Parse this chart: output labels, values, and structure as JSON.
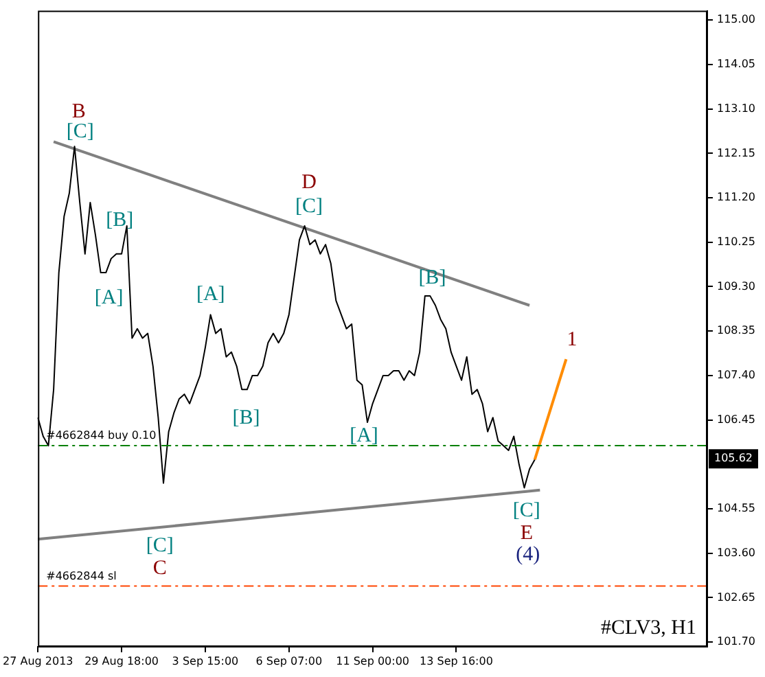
{
  "chart_data": {
    "type": "line",
    "grid": false,
    "legend": false,
    "marker": "none",
    "categories": [
      "27 Aug 2013",
      null,
      null,
      null,
      null,
      null,
      null,
      null,
      null,
      null,
      null,
      null,
      null,
      null,
      null,
      null,
      "29 Aug 18:00",
      null,
      null,
      null,
      null,
      null,
      null,
      null,
      null,
      null,
      null,
      null,
      null,
      null,
      null,
      null,
      "3 Sep 15:00",
      null,
      null,
      null,
      null,
      null,
      null,
      null,
      null,
      null,
      null,
      null,
      null,
      null,
      null,
      null,
      "6 Sep 07:00",
      null,
      null,
      null,
      null,
      null,
      null,
      null,
      null,
      null,
      null,
      null,
      null,
      null,
      null,
      null,
      "11 Sep 00:00",
      null,
      null,
      null,
      null,
      null,
      null,
      null,
      null,
      null,
      null,
      null,
      null,
      null,
      null,
      null,
      "13 Sep 16:00",
      null,
      null,
      null,
      null,
      null,
      null,
      null,
      null,
      null,
      null,
      null,
      null,
      null,
      null,
      null,
      null,
      null,
      null,
      null,
      null,
      null,
      null,
      null,
      null,
      null,
      null,
      null,
      null,
      null,
      null,
      null,
      null,
      null,
      null,
      null,
      null,
      null,
      null,
      null,
      null,
      null,
      null,
      null,
      null,
      null,
      null,
      null,
      null
    ],
    "ylim": [
      101.6,
      115.2
    ],
    "yticks": [
      {
        "value": 101.7,
        "label": "101.70"
      },
      102.65,
      {
        "value": 103.6,
        "label": "103.60"
      },
      104.55,
      106.45,
      {
        "value": 107.4,
        "label": "107.40"
      },
      108.35,
      {
        "value": 109.3,
        "label": "109.30"
      },
      110.25,
      {
        "value": 111.2,
        "label": "111.20"
      },
      112.15,
      {
        "value": 113.1,
        "label": "113.10"
      },
      114.05,
      {
        "value": 115.0,
        "label": "115.00"
      }
    ],
    "series": [
      {
        "type": "line",
        "color": "#000000",
        "values": [
          106.5,
          106.1,
          105.9,
          107.1,
          109.6,
          110.8,
          111.3,
          112.3,
          111.1,
          110.0,
          111.1,
          110.4,
          109.6,
          109.6,
          109.9,
          110.0,
          110.0,
          110.6,
          108.2,
          108.4,
          108.2,
          108.3,
          107.6,
          106.5,
          105.1,
          106.2,
          106.6,
          106.9,
          107.0,
          106.8,
          107.1,
          107.4,
          108.0,
          108.7,
          108.3,
          108.4,
          107.8,
          107.9,
          107.6,
          107.1,
          107.1,
          107.4,
          107.4,
          107.6,
          108.1,
          108.3,
          108.1,
          108.3,
          108.7,
          109.5,
          110.3,
          110.6,
          110.2,
          110.3,
          110.0,
          110.2,
          109.8,
          109.0,
          108.7,
          108.4,
          108.5,
          107.3,
          107.2,
          106.4,
          106.8,
          107.1,
          107.4,
          107.4,
          107.5,
          107.5,
          107.3,
          107.5,
          107.4,
          107.9,
          109.1,
          109.1,
          108.9,
          108.6,
          108.4,
          107.9,
          107.6,
          107.3,
          107.8,
          107.0,
          107.1,
          106.8,
          106.2,
          106.5,
          106.0,
          105.9,
          105.8,
          106.1,
          105.5,
          105.0,
          105.4,
          105.6,
          null,
          null,
          null,
          null,
          null,
          null,
          null,
          null,
          null,
          null,
          null,
          null,
          null,
          null,
          null,
          null,
          null,
          null,
          null,
          null,
          null,
          null,
          null,
          null,
          null,
          null,
          null,
          null,
          null,
          null,
          null,
          null,
          null
        ]
      },
      {
        "type": "line",
        "color": "#808080",
        "values": [
          null,
          null,
          null,
          112.4,
          null,
          null,
          null,
          null,
          null,
          null,
          null,
          null,
          null,
          null,
          null,
          null,
          null,
          null,
          null,
          null,
          null,
          null,
          null,
          null,
          null,
          null,
          null,
          null,
          null,
          null,
          null,
          null,
          null,
          null,
          null,
          null,
          null,
          null,
          null,
          null,
          null,
          null,
          null,
          null,
          null,
          null,
          null,
          null,
          null,
          null,
          null,
          null,
          null,
          null,
          null,
          null,
          null,
          null,
          null,
          null,
          null,
          null,
          null,
          null,
          null,
          null,
          null,
          null,
          null,
          null,
          null,
          null,
          null,
          null,
          null,
          null,
          null,
          null,
          null,
          null,
          null,
          null,
          null,
          null,
          null,
          null,
          null,
          null,
          null,
          null,
          null,
          null,
          null,
          null,
          108.9,
          null,
          null,
          null,
          null,
          null,
          null,
          null,
          null,
          null,
          null,
          null,
          null,
          null,
          null,
          null,
          null,
          null,
          null,
          null,
          null,
          null,
          null,
          null,
          null,
          null,
          null,
          null,
          null,
          null,
          null,
          null,
          null,
          null,
          null
        ]
      },
      {
        "type": "line",
        "color": "#808080",
        "values": [
          103.9,
          null,
          null,
          null,
          null,
          null,
          null,
          null,
          null,
          null,
          null,
          null,
          null,
          null,
          null,
          null,
          null,
          null,
          null,
          null,
          null,
          null,
          null,
          null,
          null,
          null,
          null,
          null,
          null,
          null,
          null,
          null,
          null,
          null,
          null,
          null,
          null,
          null,
          null,
          null,
          null,
          null,
          null,
          null,
          null,
          null,
          null,
          null,
          null,
          null,
          null,
          null,
          null,
          null,
          null,
          null,
          null,
          null,
          null,
          null,
          null,
          null,
          null,
          null,
          null,
          null,
          null,
          null,
          null,
          null,
          null,
          null,
          null,
          null,
          null,
          null,
          null,
          null,
          null,
          null,
          null,
          null,
          null,
          null,
          null,
          null,
          null,
          null,
          null,
          null,
          null,
          null,
          null,
          null,
          null,
          null,
          104.95,
          null,
          null,
          null,
          null,
          null,
          null,
          null,
          null,
          null,
          null,
          null,
          null,
          null,
          null,
          null,
          null,
          null,
          null,
          null,
          null,
          null,
          null,
          null,
          null,
          null,
          null,
          null,
          null,
          null,
          null,
          null,
          null
        ]
      },
      {
        "type": "line",
        "color": "#ff8c00",
        "values": [
          null,
          null,
          null,
          null,
          null,
          null,
          null,
          null,
          null,
          null,
          null,
          null,
          null,
          null,
          null,
          null,
          null,
          null,
          null,
          null,
          null,
          null,
          null,
          null,
          null,
          null,
          null,
          null,
          null,
          null,
          null,
          null,
          null,
          null,
          null,
          null,
          null,
          null,
          null,
          null,
          null,
          null,
          null,
          null,
          null,
          null,
          null,
          null,
          null,
          null,
          null,
          null,
          null,
          null,
          null,
          null,
          null,
          null,
          null,
          null,
          null,
          null,
          null,
          null,
          null,
          null,
          null,
          null,
          null,
          null,
          null,
          null,
          null,
          null,
          null,
          null,
          null,
          null,
          null,
          null,
          null,
          null,
          null,
          null,
          null,
          null,
          null,
          null,
          null,
          null,
          null,
          null,
          null,
          null,
          null,
          105.6,
          null,
          null,
          null,
          null,
          null,
          107.75,
          null,
          null,
          null,
          null,
          null,
          null,
          null,
          null,
          null,
          null,
          null,
          null,
          null,
          null,
          null,
          null,
          null,
          null,
          null,
          null,
          null,
          null,
          null,
          null,
          null,
          null,
          null
        ]
      }
    ],
    "ref_lines": [
      {
        "axis": "y",
        "value": 105.9,
        "label": "#4662844 buy 0.10",
        "color": "#008000",
        "line_style": "dashed"
      },
      {
        "axis": "y",
        "value": 102.9,
        "label": "#4662844 sl",
        "color": "#ff4500",
        "line_style": "dashed"
      }
    ],
    "annotations": [
      "B",
      "[C]",
      "[B]",
      "[A]",
      "[C]",
      "C",
      "[A]",
      "[B]",
      "D",
      "[C]",
      "[B]",
      "[A]",
      {
        "text": "1",
        "y": 107.75
      },
      "[C]",
      "E",
      "(4)",
      {
        "text": "105.62",
        "y": 105.62
      },
      "#CLV3, H1"
    ]
  }
}
